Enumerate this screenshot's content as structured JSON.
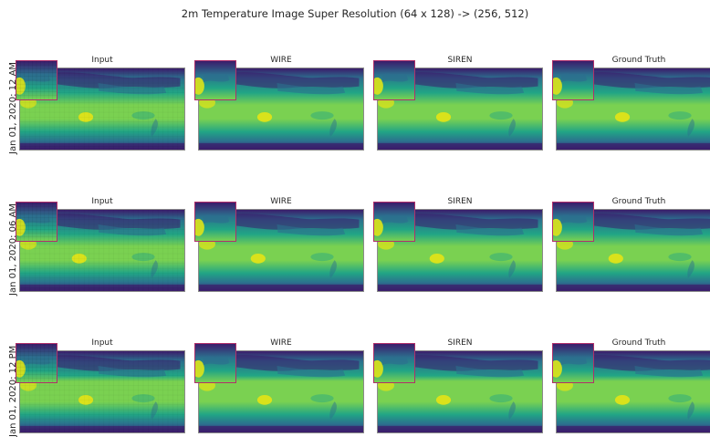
{
  "figure": {
    "title": "2m Temperature Image Super Resolution (64 x 128) -> (256, 512)"
  },
  "columns": [
    {
      "label": "Input",
      "pixelated": true
    },
    {
      "label": "WIRE",
      "pixelated": false
    },
    {
      "label": "SIREN",
      "pixelated": false
    },
    {
      "label": "Ground Truth",
      "pixelated": false
    }
  ],
  "rows": [
    {
      "label": "Jan 01, 2020: 12 AM"
    },
    {
      "label": "Jan 01, 2020: 06 AM"
    },
    {
      "label": "Jan 01, 2020: 12 PM"
    }
  ],
  "colormap": {
    "name": "viridis",
    "cold": "#3b1c6b",
    "cool": "#2c6f8e",
    "mid": "#21a585",
    "warm": "#7ad151",
    "hot": "#dfe318"
  }
}
